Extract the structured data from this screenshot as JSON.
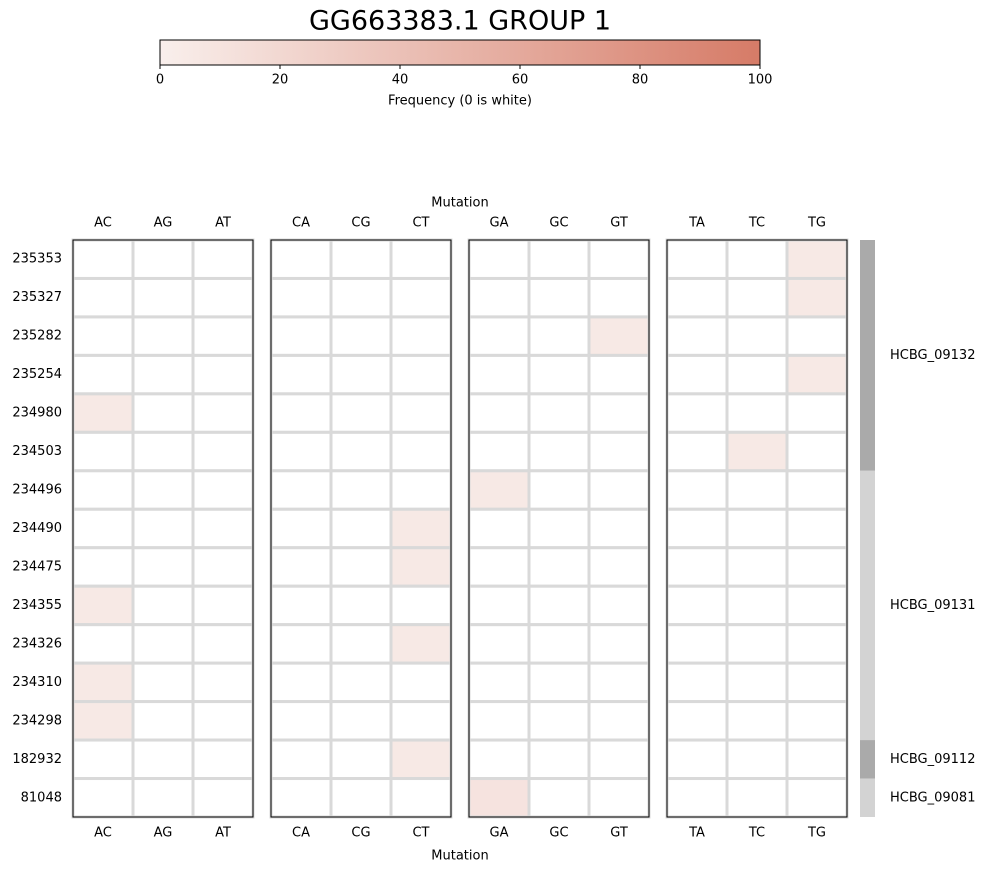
{
  "chart_data": {
    "type": "heatmap",
    "title": "GG663383.1 GROUP 1",
    "x_label": "Mutation",
    "columns": [
      [
        "AC",
        "AG",
        "AT"
      ],
      [
        "CA",
        "CG",
        "CT"
      ],
      [
        "GA",
        "GC",
        "GT"
      ],
      [
        "TA",
        "TC",
        "TG"
      ]
    ],
    "rows": [
      "235353",
      "235327",
      "235282",
      "235254",
      "234980",
      "234503",
      "234496",
      "234490",
      "234475",
      "234355",
      "234326",
      "234310",
      "234298",
      "182932",
      "81048"
    ],
    "values": [
      [
        0,
        0,
        0,
        0,
        0,
        0,
        0,
        0,
        0,
        0,
        0,
        5
      ],
      [
        0,
        0,
        0,
        0,
        0,
        0,
        0,
        0,
        0,
        0,
        0,
        5
      ],
      [
        0,
        0,
        0,
        0,
        0,
        0,
        0,
        0,
        5,
        0,
        0,
        0
      ],
      [
        0,
        0,
        0,
        0,
        0,
        0,
        0,
        0,
        0,
        0,
        0,
        5
      ],
      [
        5,
        0,
        0,
        0,
        0,
        0,
        0,
        0,
        0,
        0,
        0,
        0
      ],
      [
        0,
        0,
        0,
        0,
        0,
        0,
        0,
        0,
        0,
        0,
        5,
        0
      ],
      [
        0,
        0,
        0,
        0,
        0,
        0,
        5,
        0,
        0,
        0,
        0,
        0
      ],
      [
        0,
        0,
        0,
        0,
        0,
        5,
        0,
        0,
        0,
        0,
        0,
        0
      ],
      [
        0,
        0,
        0,
        0,
        0,
        5,
        0,
        0,
        0,
        0,
        0,
        0
      ],
      [
        5,
        0,
        0,
        0,
        0,
        0,
        0,
        0,
        0,
        0,
        0,
        0
      ],
      [
        0,
        0,
        0,
        0,
        0,
        5,
        0,
        0,
        0,
        0,
        0,
        0
      ],
      [
        5,
        0,
        0,
        0,
        0,
        0,
        0,
        0,
        0,
        0,
        0,
        0
      ],
      [
        5,
        0,
        0,
        0,
        0,
        0,
        0,
        0,
        0,
        0,
        0,
        0
      ],
      [
        0,
        0,
        0,
        0,
        0,
        5,
        0,
        0,
        0,
        0,
        0,
        0
      ],
      [
        0,
        0,
        0,
        0,
        0,
        0,
        10,
        0,
        0,
        0,
        0,
        0
      ]
    ],
    "row_genes": [
      "HCBG_09132",
      "HCBG_09132",
      "HCBG_09132",
      "HCBG_09132",
      "HCBG_09132",
      "HCBG_09132",
      "HCBG_09131",
      "HCBG_09131",
      "HCBG_09131",
      "HCBG_09131",
      "HCBG_09131",
      "HCBG_09131",
      "HCBG_09131",
      "HCBG_09112",
      "HCBG_09081"
    ],
    "gene_colors": [
      "#aaaaaa",
      "#d3d3d3"
    ],
    "colorbar": {
      "label": "Frequency (0 is white)",
      "lim": [
        0,
        100
      ],
      "ticks": [
        0,
        20,
        40,
        60,
        80,
        100
      ],
      "colors": [
        "#f9efec",
        "#d67b67"
      ]
    },
    "zero_color": "#ffffff",
    "grid_color": "#d9d9d9"
  }
}
